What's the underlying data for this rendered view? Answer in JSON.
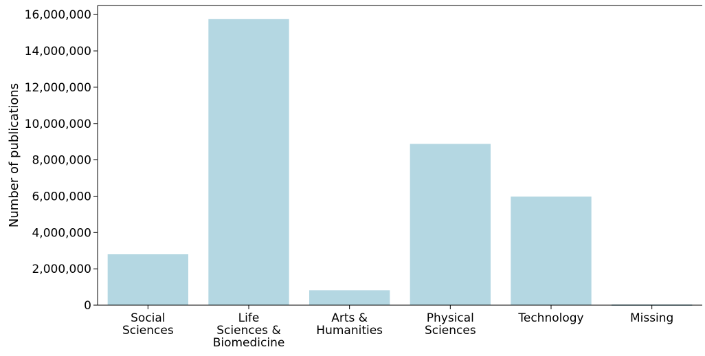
{
  "chart_data": {
    "type": "bar",
    "categories": [
      [
        "Social",
        "Sciences"
      ],
      [
        "Life",
        "Sciences &",
        "Biomedicine"
      ],
      [
        "Arts &",
        "Humanities"
      ],
      [
        "Physical",
        "Sciences"
      ],
      [
        "Technology"
      ],
      [
        "Missing"
      ]
    ],
    "values": [
      2800000,
      15750000,
      820000,
      8880000,
      5980000,
      30000
    ],
    "ylabel": "Number of publications",
    "ylim": [
      0,
      16500000
    ],
    "yticks": [
      0,
      2000000,
      4000000,
      6000000,
      8000000,
      10000000,
      12000000,
      14000000,
      16000000
    ],
    "ytick_labels": [
      "0",
      "2,000,000",
      "4,000,000",
      "6,000,000",
      "8,000,000",
      "10,000,000",
      "12,000,000",
      "14,000,000",
      "16,000,000"
    ],
    "bar_color": "#b4d7e2",
    "missing_color": "#5a9aa8",
    "grid": false,
    "legend": "none"
  }
}
